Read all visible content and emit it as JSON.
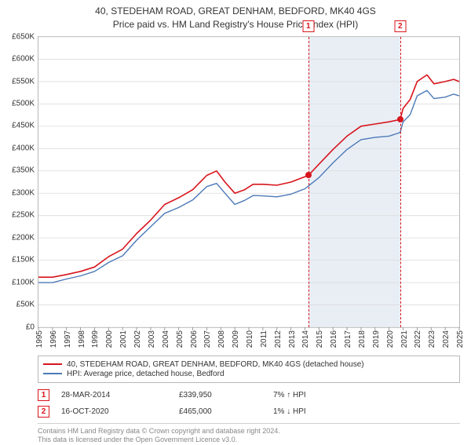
{
  "title": {
    "line1": "40, STEDEHAM ROAD, GREAT DENHAM, BEDFORD, MK40 4GS",
    "line2": "Price paid vs. HM Land Registry's House Price Index (HPI)"
  },
  "chart": {
    "type": "line",
    "background_color": "#ffffff",
    "grid_color": "#dcdcdc",
    "y": {
      "min": 0,
      "max": 650000,
      "tick_step": 50000,
      "prefix": "£",
      "suffix": "K",
      "divisor": 1000
    },
    "x": {
      "min": 1995,
      "max": 2025,
      "ticks": [
        1995,
        1996,
        1997,
        1998,
        1999,
        2000,
        2001,
        2002,
        2003,
        2004,
        2005,
        2006,
        2007,
        2008,
        2009,
        2010,
        2011,
        2012,
        2013,
        2014,
        2015,
        2016,
        2017,
        2018,
        2019,
        2020,
        2021,
        2022,
        2023,
        2024,
        2025
      ]
    },
    "shaded_band": {
      "from": 2014.24,
      "to": 2020.79,
      "color": "#e9eef5"
    },
    "marker_lines": [
      {
        "x": 2014.24,
        "color": "#d8141c",
        "label": "1"
      },
      {
        "x": 2020.79,
        "color": "#d8141c",
        "label": "2"
      }
    ],
    "series": [
      {
        "name": "40, STEDEHAM ROAD, GREAT DENHAM, BEDFORD, MK40 4GS (detached house)",
        "color": "#d8141c",
        "width": 1.6,
        "points": [
          [
            1995,
            112000
          ],
          [
            1996,
            112000
          ],
          [
            1997,
            118000
          ],
          [
            1998,
            125000
          ],
          [
            1999,
            135000
          ],
          [
            2000,
            158000
          ],
          [
            2001,
            175000
          ],
          [
            2002,
            210000
          ],
          [
            2003,
            240000
          ],
          [
            2004,
            275000
          ],
          [
            2005,
            290000
          ],
          [
            2006,
            308000
          ],
          [
            2007,
            340000
          ],
          [
            2007.7,
            350000
          ],
          [
            2008.3,
            325000
          ],
          [
            2009,
            300000
          ],
          [
            2009.7,
            308000
          ],
          [
            2010.3,
            320000
          ],
          [
            2011,
            320000
          ],
          [
            2012,
            318000
          ],
          [
            2013,
            325000
          ],
          [
            2014.24,
            339950
          ],
          [
            2015,
            365000
          ],
          [
            2016,
            398000
          ],
          [
            2017,
            428000
          ],
          [
            2018,
            450000
          ],
          [
            2019,
            455000
          ],
          [
            2020,
            460000
          ],
          [
            2020.79,
            465000
          ],
          [
            2021,
            490000
          ],
          [
            2021.5,
            510000
          ],
          [
            2022,
            550000
          ],
          [
            2022.7,
            565000
          ],
          [
            2023.2,
            545000
          ],
          [
            2024,
            550000
          ],
          [
            2024.6,
            555000
          ],
          [
            2025,
            550000
          ]
        ]
      },
      {
        "name": "HPI: Average price, detached house, Bedford",
        "color": "#4c79b7",
        "width": 1.4,
        "points": [
          [
            1995,
            100000
          ],
          [
            1996,
            100000
          ],
          [
            1997,
            108000
          ],
          [
            1998,
            115000
          ],
          [
            1999,
            125000
          ],
          [
            2000,
            145000
          ],
          [
            2001,
            160000
          ],
          [
            2002,
            195000
          ],
          [
            2003,
            225000
          ],
          [
            2004,
            255000
          ],
          [
            2005,
            268000
          ],
          [
            2006,
            285000
          ],
          [
            2007,
            315000
          ],
          [
            2007.7,
            322000
          ],
          [
            2008.3,
            300000
          ],
          [
            2009,
            275000
          ],
          [
            2009.7,
            284000
          ],
          [
            2010.3,
            295000
          ],
          [
            2011,
            294000
          ],
          [
            2012,
            292000
          ],
          [
            2013,
            298000
          ],
          [
            2014,
            310000
          ],
          [
            2015,
            335000
          ],
          [
            2016,
            368000
          ],
          [
            2017,
            398000
          ],
          [
            2018,
            420000
          ],
          [
            2019,
            425000
          ],
          [
            2020,
            428000
          ],
          [
            2020.79,
            436000
          ],
          [
            2021,
            460000
          ],
          [
            2021.5,
            476000
          ],
          [
            2022,
            518000
          ],
          [
            2022.7,
            530000
          ],
          [
            2023.2,
            512000
          ],
          [
            2024,
            515000
          ],
          [
            2024.6,
            522000
          ],
          [
            2025,
            518000
          ]
        ]
      }
    ],
    "markers": [
      {
        "x": 2014.24,
        "y": 339950,
        "color": "#d8141c",
        "size": 8
      },
      {
        "x": 2020.79,
        "y": 465000,
        "color": "#d8141c",
        "size": 8
      }
    ]
  },
  "legend": {
    "items": [
      {
        "color": "#d8141c",
        "label": "40, STEDEHAM ROAD, GREAT DENHAM, BEDFORD, MK40 4GS (detached house)"
      },
      {
        "color": "#4c79b7",
        "label": "HPI: Average price, detached house, Bedford"
      }
    ]
  },
  "transactions": [
    {
      "n": "1",
      "color": "#d8141c",
      "date": "28-MAR-2014",
      "price": "£339,950",
      "diff": "7% ↑ HPI"
    },
    {
      "n": "2",
      "color": "#d8141c",
      "date": "16-OCT-2020",
      "price": "£465,000",
      "diff": "1% ↓ HPI"
    }
  ],
  "footer": {
    "line1": "Contains HM Land Registry data © Crown copyright and database right 2024.",
    "line2": "This data is licensed under the Open Government Licence v3.0."
  }
}
